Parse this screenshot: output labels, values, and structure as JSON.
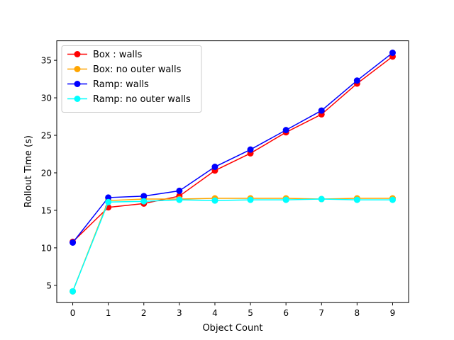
{
  "chart_data": {
    "type": "line",
    "x": [
      0,
      1,
      2,
      3,
      4,
      5,
      6,
      7,
      8,
      9
    ],
    "xlabel": "Object Count",
    "ylabel": "Rollout Time (s)",
    "xlim": [
      -0.45,
      9.45
    ],
    "ylim": [
      2.7,
      37.6
    ],
    "xticks": [
      0,
      1,
      2,
      3,
      4,
      5,
      6,
      7,
      8,
      9
    ],
    "yticks": [
      5,
      10,
      15,
      20,
      25,
      30,
      35
    ],
    "grid": false,
    "legend_position": "top-left",
    "series": [
      {
        "name": "Box : walls",
        "color": "#ff0000",
        "values": [
          10.8,
          15.4,
          15.9,
          16.9,
          20.3,
          22.6,
          25.4,
          27.8,
          31.9,
          35.5
        ]
      },
      {
        "name": "Box: no outer walls",
        "color": "#ffa500",
        "values": [
          4.2,
          16.3,
          16.5,
          16.5,
          16.6,
          16.6,
          16.6,
          16.5,
          16.6,
          16.6
        ]
      },
      {
        "name": "Ramp: walls",
        "color": "#0000ff",
        "values": [
          10.7,
          16.7,
          16.9,
          17.6,
          20.8,
          23.1,
          25.7,
          28.3,
          32.3,
          36.0
        ]
      },
      {
        "name": "Ramp: no outer walls",
        "color": "#00ffff",
        "values": [
          4.2,
          16.1,
          16.2,
          16.4,
          16.3,
          16.4,
          16.4,
          16.5,
          16.4,
          16.4
        ]
      }
    ]
  }
}
